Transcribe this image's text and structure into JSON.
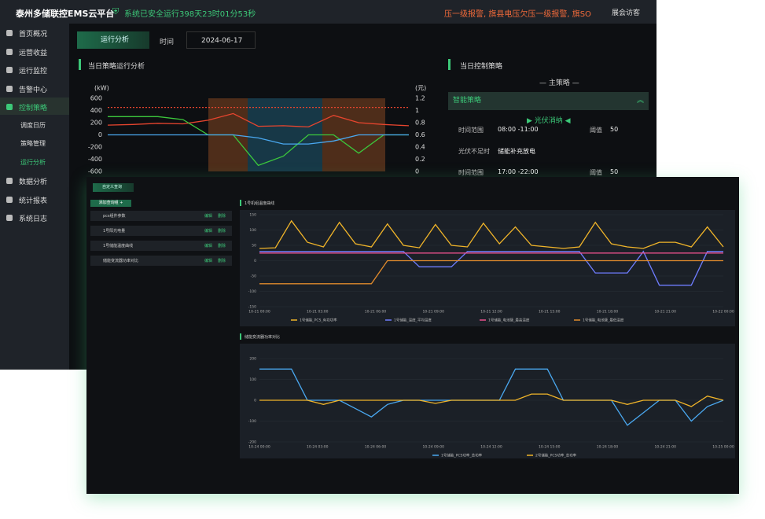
{
  "header": {
    "title": "泰州多储联控EMS云平台",
    "status": "系统已安全运行398天23时01分53秒",
    "alarm": "压一级报警, 旗县电压欠压一级报警, 旗SO",
    "user": "展会访客"
  },
  "sidebar": {
    "items": [
      "首页概况",
      "运营收益",
      "运行监控",
      "告警中心",
      "控制策略"
    ],
    "subitems": [
      "调度日历",
      "策略管理",
      "运行分析"
    ],
    "items_after": [
      "数据分析",
      "统计报表",
      "系统日志"
    ]
  },
  "toolbar": {
    "tab": "运行分析",
    "time_label": "时间",
    "date": "2024-06-17"
  },
  "strategy_chart": {
    "title": "当日策略运行分析",
    "y_unit": "(kW)",
    "y2_unit": "(元)",
    "ylim": [
      -600,
      600
    ],
    "yticks": [
      600,
      400,
      200,
      0,
      -200,
      -400,
      -600
    ],
    "y2lim": [
      0,
      1.2
    ],
    "y2ticks": [
      1.2,
      1,
      0.8,
      0.6,
      0.4,
      0.2,
      0
    ],
    "series": [
      {
        "color": "#e8452e",
        "values": [
          160,
          170,
          190,
          180,
          240,
          350,
          140,
          150,
          130,
          320,
          200,
          170,
          150
        ]
      },
      {
        "color": "#3cc83c",
        "values": [
          300,
          300,
          300,
          250,
          0,
          0,
          -500,
          -350,
          0,
          0,
          -300,
          0,
          0
        ]
      },
      {
        "color": "#4aa8f0",
        "values": [
          0,
          0,
          0,
          0,
          0,
          0,
          -50,
          -150,
          -150,
          -100,
          0,
          0,
          0
        ]
      },
      {
        "color": "#e8452e",
        "axis": "y2",
        "values": [
          1.05,
          1.05,
          1.05,
          1.05,
          1.05,
          1.05,
          1.05,
          1.05,
          1.05,
          1.05,
          1.05,
          1.05,
          1.05
        ]
      }
    ]
  },
  "control_panel": {
    "title": "当日控制策略",
    "main": "主策略",
    "section": "智能策略",
    "mode": "光伏消纳",
    "rows": [
      {
        "label": "时间范围",
        "value": "08:00 -11:00",
        "threshold_label": "阈值",
        "threshold": "50"
      },
      {
        "label": "光伏不足时",
        "value": "储能补充放电"
      },
      {
        "label": "时间范围",
        "value": "17:00 -22:00",
        "threshold_label": "阈值",
        "threshold": "50"
      }
    ]
  },
  "query": {
    "title": "自定义查询",
    "add_button": "添加查询组 +",
    "groups": [
      {
        "name": "pcs组件参数",
        "edit": "编辑",
        "delete": "删除"
      },
      {
        "name": "1号阳光电量",
        "edit": "编辑",
        "delete": "删除"
      },
      {
        "name": "1号储能温度曲线",
        "edit": "编辑",
        "delete": "删除"
      },
      {
        "name": "储能变流器功率对比",
        "edit": "编辑",
        "delete": "删除"
      }
    ]
  },
  "charts": [
    {
      "type": "line",
      "title": "1号机组温度曲线",
      "ylim": [
        -150,
        150
      ],
      "yticks": [
        150,
        100,
        50,
        0,
        -50,
        -100,
        -150
      ],
      "x_labels": [
        "10-21 00:00",
        "10-21 03:00",
        "10-21 06:00",
        "10-21 09:00",
        "10-21 12:00",
        "10-21 15:00",
        "10-21 18:00",
        "10-21 21:00",
        "10-22 00:00"
      ],
      "series": [
        {
          "name": "1号储能_PCS_有功功率",
          "color": "#f0b429",
          "values": [
            40,
            42,
            130,
            60,
            45,
            125,
            55,
            45,
            120,
            50,
            42,
            118,
            50,
            45,
            122,
            55,
            110,
            50,
            45,
            40,
            45,
            125,
            55,
            45,
            40,
            60,
            60,
            45,
            110,
            45
          ]
        },
        {
          "name": "1号储能_温度_平均温度",
          "color": "#6f7dff",
          "values": [
            30,
            30,
            30,
            30,
            30,
            30,
            30,
            30,
            30,
            30,
            -20,
            -20,
            -20,
            30,
            30,
            30,
            30,
            30,
            30,
            30,
            30,
            -40,
            -40,
            -40,
            30,
            -80,
            -80,
            -80,
            30,
            30
          ]
        },
        {
          "name": "1号储能_电池簇_最高温度",
          "color": "#e8508c",
          "values": [
            25,
            25,
            25,
            25,
            25,
            25,
            25,
            25,
            25,
            25,
            25,
            25,
            25,
            25,
            25,
            25,
            25,
            25,
            25,
            25,
            25,
            25,
            25,
            25,
            25,
            25,
            25,
            25,
            25,
            25
          ]
        },
        {
          "name": "1号储能_电池簇_最低温度",
          "color": "#e08a2c",
          "values": [
            -75,
            -75,
            -75,
            -75,
            -75,
            -75,
            -75,
            -75,
            0,
            0,
            0,
            0,
            0,
            0,
            0,
            0,
            0,
            0,
            0,
            0,
            0,
            0,
            0,
            0,
            0,
            0,
            0,
            0,
            0,
            0
          ]
        }
      ]
    },
    {
      "type": "line",
      "title": "储能变流器功率对比",
      "ylim": [
        -200,
        200
      ],
      "yticks": [
        200,
        100,
        0,
        -100,
        -200
      ],
      "x_labels": [
        "10-24 00:00",
        "10-24 03:00",
        "10-24 06:00",
        "10-24 09:00",
        "10-24 12:00",
        "10-24 15:00",
        "10-24 18:00",
        "10-24 21:00",
        "10-25 00:00"
      ],
      "series": [
        {
          "name": "1号储能_PCS功率_总功率",
          "color": "#4aa8f0",
          "values": [
            150,
            150,
            150,
            0,
            0,
            0,
            -40,
            -80,
            -20,
            0,
            0,
            0,
            0,
            0,
            0,
            0,
            150,
            150,
            150,
            0,
            0,
            0,
            0,
            -120,
            -60,
            0,
            0,
            -100,
            -30,
            0
          ]
        },
        {
          "name": "2号储能_PCS功率_总功率",
          "color": "#f0b429",
          "values": [
            0,
            0,
            0,
            0,
            -20,
            0,
            0,
            0,
            0,
            0,
            0,
            -15,
            0,
            0,
            0,
            0,
            0,
            30,
            30,
            0,
            0,
            0,
            0,
            -20,
            0,
            0,
            0,
            -30,
            20,
            0
          ]
        }
      ]
    }
  ]
}
